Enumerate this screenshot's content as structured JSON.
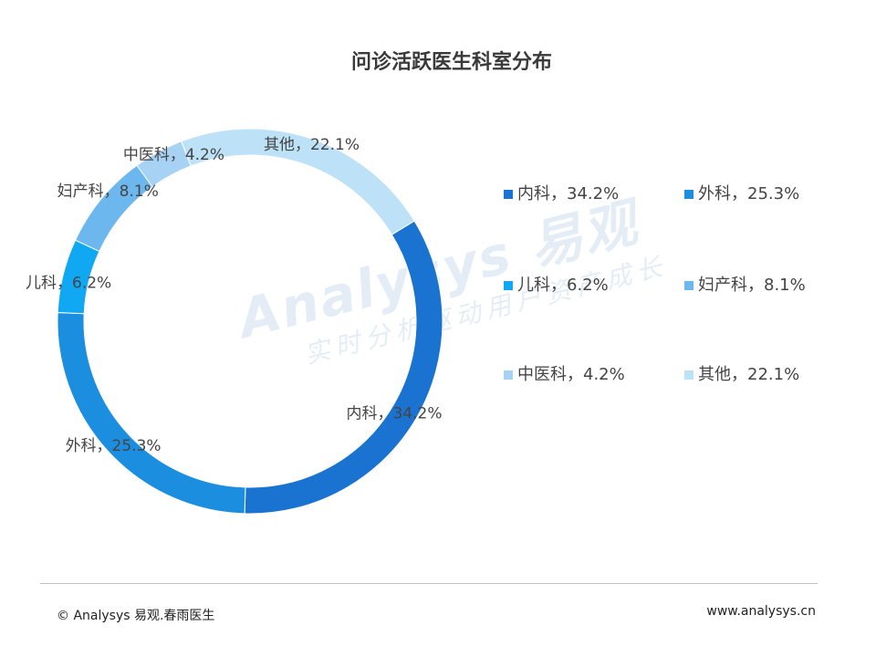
{
  "chart_data": {
    "type": "pie",
    "title": "问诊活跃医生科室分布",
    "slices": [
      {
        "name": "内科",
        "value": 34.2,
        "label": "内科，34.2%",
        "color": "#1a73d0"
      },
      {
        "name": "外科",
        "value": 25.3,
        "label": "外科，25.3%",
        "color": "#1c8ee0"
      },
      {
        "name": "儿科",
        "value": 6.2,
        "label": "儿科，6.2%",
        "color": "#10a8f2"
      },
      {
        "name": "妇产科",
        "value": 8.1,
        "label": "妇产科，8.1%",
        "color": "#6cb8ee"
      },
      {
        "name": "中医科",
        "value": 4.2,
        "label": "中医科，4.2%",
        "color": "#a8d2f4"
      },
      {
        "name": "其他",
        "value": 22.1,
        "label": "其他，22.1%",
        "color": "#bde1f6"
      }
    ],
    "legend_position": "right",
    "grid": false
  },
  "watermark": {
    "brand": "Analysys 易观",
    "slogan": "实时分析驱动用户资产成长"
  },
  "footer": {
    "left": "© Analysys 易观.春雨医生",
    "right": "www.analysys.cn"
  }
}
